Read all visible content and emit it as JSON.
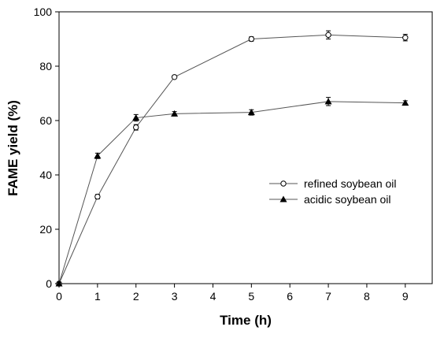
{
  "chart_data": {
    "type": "line",
    "x_label": "Time (h)",
    "y_label": "FAME yield (%)",
    "x": [
      0,
      1,
      2,
      3,
      5,
      7,
      9
    ],
    "series": [
      {
        "name": "refined soybean oil",
        "color": "#555555",
        "marker": "open-circle",
        "values": [
          0,
          32,
          57.5,
          76,
          90,
          91.5,
          90.5
        ],
        "errors": [
          0.5,
          0.8,
          1,
          0.5,
          0.8,
          1.5,
          1.2
        ]
      },
      {
        "name": "acidic soybean oil",
        "color": "#555555",
        "marker": "filled-triangle",
        "values": [
          0,
          47,
          61,
          62.5,
          63,
          67,
          66.5
        ],
        "errors": [
          0.5,
          1,
          1.2,
          0.8,
          1,
          1.5,
          0.8
        ]
      }
    ],
    "xlim": [
      0,
      9.7
    ],
    "xticks": [
      0,
      1,
      2,
      3,
      4,
      5,
      6,
      7,
      8,
      9
    ],
    "ylim": [
      0,
      100
    ],
    "yticks": [
      0,
      20,
      40,
      60,
      80,
      100
    ],
    "legend": "center right"
  }
}
